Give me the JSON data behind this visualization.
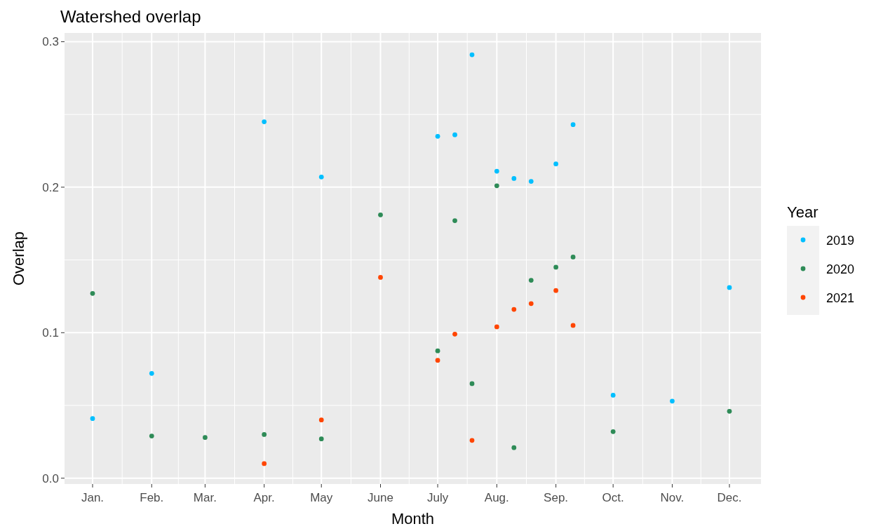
{
  "chart_data": {
    "type": "scatter",
    "title": "Watershed overlap",
    "xlabel": "Month",
    "ylabel": "Overlap",
    "legend_title": "Year",
    "legend": "right",
    "grid": true,
    "marker": "circle",
    "xlim": [
      "--01-01",
      "--12-01"
    ],
    "ylim": [
      -0.004,
      0.306
    ],
    "xticks": [
      {
        "value": "--01-01",
        "label": "Jan."
      },
      {
        "value": "--02-01",
        "label": "Feb."
      },
      {
        "value": "--03-01",
        "label": "Mar."
      },
      {
        "value": "--04-01",
        "label": "Apr."
      },
      {
        "value": "--05-01",
        "label": "May"
      },
      {
        "value": "--06-01",
        "label": "June"
      },
      {
        "value": "--07-01",
        "label": "July"
      },
      {
        "value": "--08-01",
        "label": "Aug."
      },
      {
        "value": "--09-01",
        "label": "Sep."
      },
      {
        "value": "--10-01",
        "label": "Oct."
      },
      {
        "value": "--11-01",
        "label": "Nov."
      },
      {
        "value": "--12-01",
        "label": "Dec."
      }
    ],
    "yticks": [
      {
        "value": 0,
        "label": "0.0"
      },
      0.1,
      0.2,
      0.3
    ],
    "series": [
      {
        "name": "2019",
        "color": "#00bfff",
        "x": [
          "--01-01",
          "--02-01",
          "--04-01",
          "--05-01",
          "--07-01",
          "--07-10",
          "--07-19",
          "--08-01",
          "--08-10",
          "--08-19",
          "--09-01",
          "--09-10",
          "--10-01",
          "--11-01",
          "--12-01"
        ],
        "values": [
          0.041,
          0.072,
          0.245,
          0.207,
          0.235,
          0.236,
          0.291,
          0.211,
          0.206,
          0.204,
          0.216,
          0.243,
          0.057,
          0.053,
          0.131
        ]
      },
      {
        "name": "2020",
        "color": "#2e8b57",
        "x": [
          "--01-01",
          "--02-01",
          "--03-01",
          "--04-01",
          "--05-01",
          "--06-01",
          "--07-01",
          "--07-10",
          "--07-19",
          "--08-01",
          "--08-10",
          "--08-19",
          "--09-01",
          "--09-10",
          "--10-01",
          "--12-01"
        ],
        "values": [
          0.127,
          0.029,
          0.028,
          0.03,
          0.027,
          0.181,
          0.0875,
          0.177,
          0.065,
          0.201,
          0.021,
          0.136,
          0.145,
          0.152,
          0.032,
          0.046
        ]
      },
      {
        "name": "2021",
        "color": "#ff4500",
        "x": [
          "--04-01",
          "--05-01",
          "--06-01",
          "--07-01",
          "--07-10",
          "--07-19",
          "--08-01",
          "--08-10",
          "--08-19",
          "--09-01",
          "--09-10"
        ],
        "values": [
          0.01,
          0.04,
          0.138,
          0.081,
          0.099,
          0.026,
          0.104,
          0.116,
          0.12,
          0.129,
          0.105
        ]
      }
    ]
  }
}
